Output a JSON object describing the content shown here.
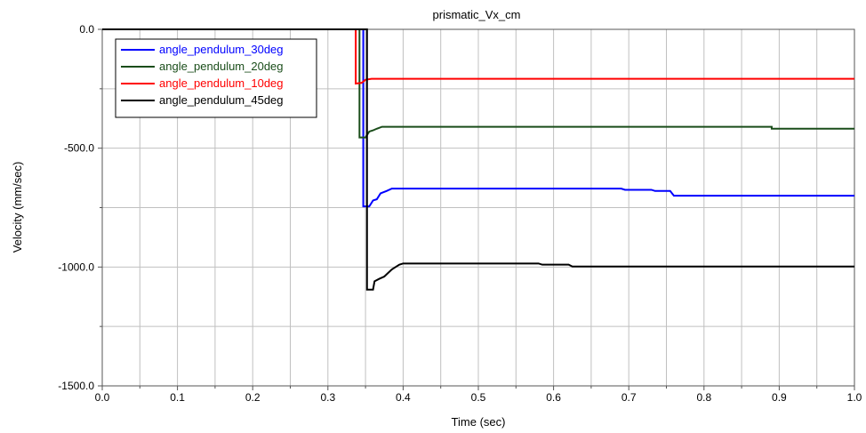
{
  "chart_data": {
    "type": "line",
    "title": "prismatic_Vx_cm",
    "xlabel": "Time (sec)",
    "ylabel": "Velocity (mm/sec)",
    "xlim": [
      0.0,
      1.0
    ],
    "ylim": [
      -1500.0,
      0.0
    ],
    "x_ticks": [
      0.0,
      0.1,
      0.2,
      0.3,
      0.4,
      0.5,
      0.6,
      0.7,
      0.8,
      0.9,
      1.0
    ],
    "x_tick_labels": [
      "0.0",
      "0.1",
      "0.2",
      "0.3",
      "0.4",
      "0.5",
      "0.6",
      "0.7",
      "0.8",
      "0.9",
      "1.0"
    ],
    "x_minor_step": 0.05,
    "y_ticks": [
      0.0,
      -500.0,
      -1000.0,
      -1500.0
    ],
    "y_tick_labels": [
      "0.0",
      "-500.0",
      "-1000.0",
      "-1500.0"
    ],
    "y_minor_step": 250,
    "grid": true,
    "legend_position": "top-left",
    "series": [
      {
        "name": "angle_pendulum_30deg",
        "color": "#0000ff",
        "points": [
          [
            0.0,
            0.0
          ],
          [
            0.347,
            0.0
          ],
          [
            0.347,
            -745
          ],
          [
            0.355,
            -745
          ],
          [
            0.36,
            -720
          ],
          [
            0.365,
            -715
          ],
          [
            0.37,
            -690
          ],
          [
            0.378,
            -680
          ],
          [
            0.385,
            -670
          ],
          [
            0.69,
            -670
          ],
          [
            0.695,
            -675
          ],
          [
            0.73,
            -675
          ],
          [
            0.735,
            -680
          ],
          [
            0.755,
            -680
          ],
          [
            0.76,
            -700
          ],
          [
            1.0,
            -700
          ]
        ]
      },
      {
        "name": "angle_pendulum_20deg",
        "color": "#1a4d1a",
        "points": [
          [
            0.0,
            0.0
          ],
          [
            0.342,
            0.0
          ],
          [
            0.342,
            -455
          ],
          [
            0.35,
            -455
          ],
          [
            0.355,
            -430
          ],
          [
            0.36,
            -425
          ],
          [
            0.365,
            -418
          ],
          [
            0.372,
            -410
          ],
          [
            0.89,
            -410
          ],
          [
            0.89,
            -418
          ],
          [
            1.0,
            -418
          ]
        ]
      },
      {
        "name": "angle_pendulum_10deg",
        "color": "#ff0000",
        "points": [
          [
            0.0,
            0.0
          ],
          [
            0.337,
            0.0
          ],
          [
            0.337,
            -228
          ],
          [
            0.345,
            -225
          ],
          [
            0.35,
            -212
          ],
          [
            0.358,
            -208
          ],
          [
            1.0,
            -208
          ]
        ]
      },
      {
        "name": "angle_pendulum_45deg",
        "color": "#000000",
        "points": [
          [
            0.0,
            0.0
          ],
          [
            0.352,
            0.0
          ],
          [
            0.352,
            -1095
          ],
          [
            0.36,
            -1095
          ],
          [
            0.362,
            -1060
          ],
          [
            0.368,
            -1050
          ],
          [
            0.375,
            -1040
          ],
          [
            0.38,
            -1025
          ],
          [
            0.385,
            -1010
          ],
          [
            0.39,
            -1000
          ],
          [
            0.395,
            -990
          ],
          [
            0.4,
            -985
          ],
          [
            0.58,
            -985
          ],
          [
            0.585,
            -990
          ],
          [
            0.62,
            -990
          ],
          [
            0.625,
            -998
          ],
          [
            1.0,
            -998
          ]
        ]
      }
    ]
  }
}
